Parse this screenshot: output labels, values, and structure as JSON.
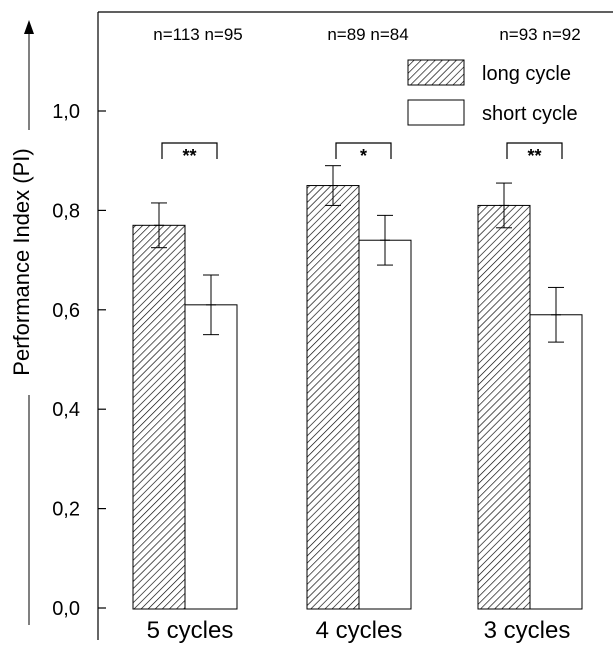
{
  "chart_data": {
    "type": "bar",
    "title": "",
    "xlabel": "",
    "ylabel": "Performance Index (PI)",
    "ylim": [
      0,
      1.2
    ],
    "yticks": [
      "0,0",
      "0,2",
      "0,4",
      "0,6",
      "0,8",
      "1,0"
    ],
    "ytick_values": [
      0,
      0.2,
      0.4,
      0.6,
      0.8,
      1.0
    ],
    "grid": false,
    "legend_position": "top-right",
    "categories": [
      "5 cycles",
      "4 cycles",
      "3 cycles"
    ],
    "series": [
      {
        "name": "long cycle",
        "pattern": "hatched",
        "values": [
          0.77,
          0.85,
          0.81
        ],
        "errors": [
          0.045,
          0.04,
          0.045
        ]
      },
      {
        "name": "short cycle",
        "pattern": "open",
        "values": [
          0.61,
          0.74,
          0.59
        ],
        "errors": [
          0.06,
          0.05,
          0.055
        ]
      }
    ],
    "sample_sizes": [
      "n=113 n=95",
      "n=89 n=84",
      "n=93 n=92"
    ],
    "significance": [
      "**",
      "*",
      "**"
    ],
    "colors": {
      "hatch": "#000000",
      "fill_open": "#ffffff",
      "axis": "#000000"
    }
  }
}
